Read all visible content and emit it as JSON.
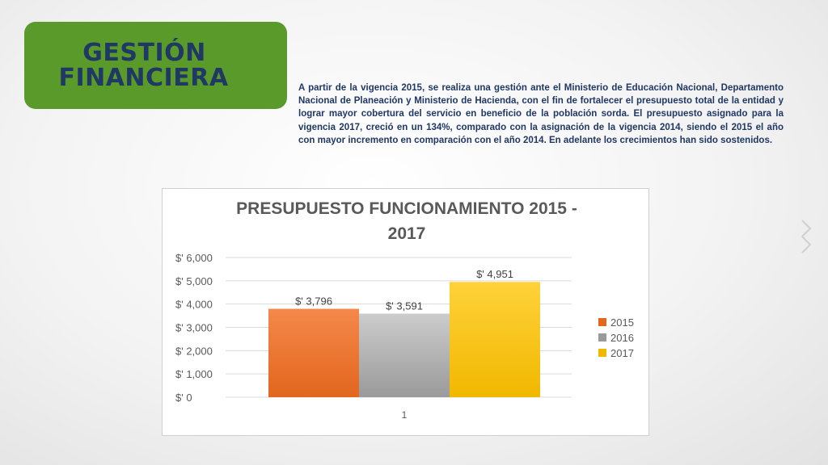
{
  "slide": {
    "title_line1": "GESTIÓN",
    "title_line2": "FINANCIERA",
    "description": "A partir de la vigencia 2015, se realiza una gestión ante el Ministerio de Educación Nacional, Departamento Nacional de Planeación y Ministerio de Hacienda, con el fin de fortalecer el presupuesto total de la entidad y lograr mayor cobertura del servicio en beneficio de la población sorda. El presupuesto asignado para la vigencia 2017, creció en un 134%, comparado con la asignación de la vigencia 2014, siendo el 2015 el año con mayor incremento en comparación con el año 2014. En adelante los crecimientos han sido sostenidos.",
    "accent_color": "#5a9a2a",
    "text_color": "#1f3864"
  },
  "chart_data": {
    "type": "bar",
    "title_line1": "PRESUPUESTO FUNCIONAMIENTO  2015 -",
    "title_line2": "2017",
    "categories": [
      "1"
    ],
    "series": [
      {
        "name": "2015",
        "values": [
          3796
        ],
        "label": "$' 3,796",
        "color_top": "#f4884a",
        "color_bottom": "#e2661e"
      },
      {
        "name": "2016",
        "values": [
          3591
        ],
        "label": "$' 3,591",
        "color_top": "#cccccc",
        "color_bottom": "#9a9a9a"
      },
      {
        "name": "2017",
        "values": [
          4951
        ],
        "label": "$' 4,951",
        "color_top": "#ffd23a",
        "color_bottom": "#f1b800"
      }
    ],
    "ylim": [
      0,
      6000
    ],
    "yticks": [
      {
        "value": 0,
        "label": "$' 0"
      },
      {
        "value": 1000,
        "label": "$' 1,000"
      },
      {
        "value": 2000,
        "label": "$' 2,000"
      },
      {
        "value": 3000,
        "label": "$' 3,000"
      },
      {
        "value": 4000,
        "label": "$' 4,000"
      },
      {
        "value": 5000,
        "label": "$' 5,000"
      },
      {
        "value": 6000,
        "label": "$' 6,000"
      }
    ],
    "grid": true,
    "legend_position": "right"
  }
}
